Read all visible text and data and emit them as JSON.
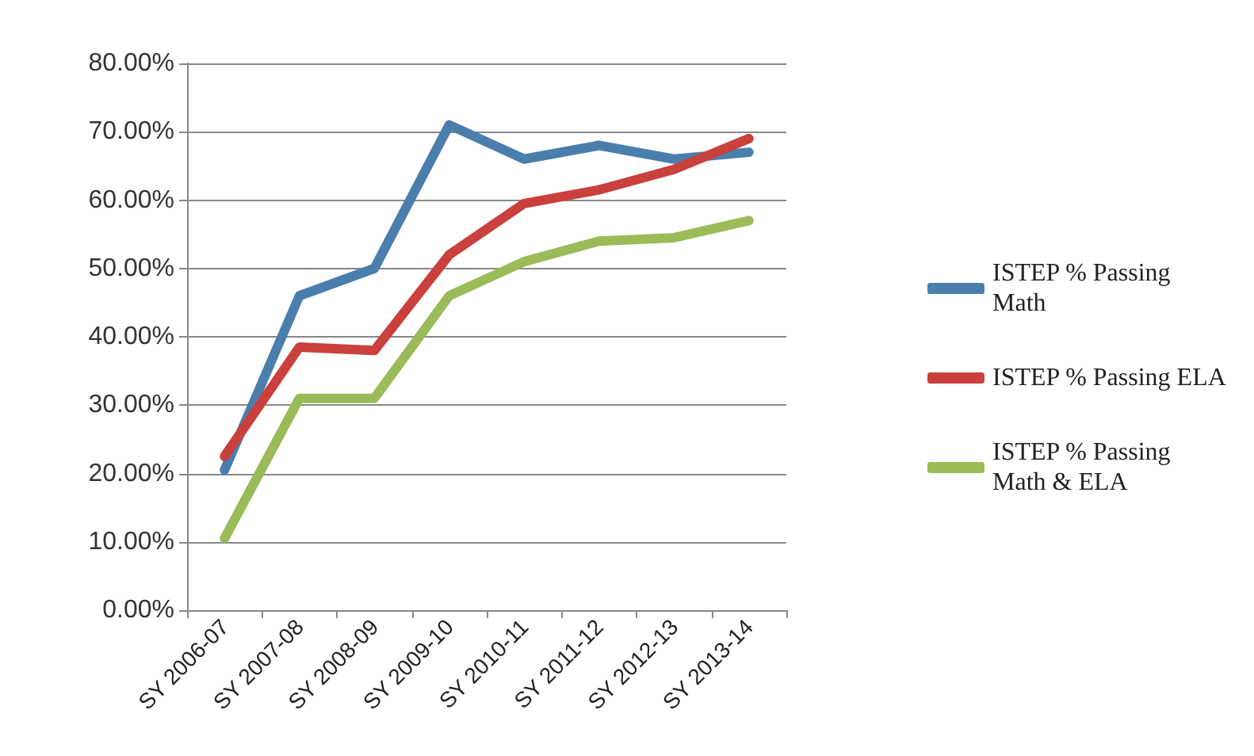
{
  "chart_data": {
    "type": "line",
    "categories": [
      "SY 2006-07",
      "SY 2007-08",
      "SY 2008-09",
      "SY 2009-10",
      "SY 2010-11",
      "SY 2011-12",
      "SY 2012-13",
      "SY 2013-14"
    ],
    "series": [
      {
        "name": "ISTEP % Passing Math",
        "color": "#4a7ead",
        "values": [
          20.5,
          46,
          50,
          71,
          66,
          68,
          66,
          67
        ]
      },
      {
        "name": "ISTEP % Passing ELA",
        "color": "#c9403c",
        "values": [
          22.5,
          38.5,
          38,
          52,
          59.5,
          61.5,
          64.5,
          69
        ]
      },
      {
        "name": "ISTEP % Passing Math & ELA",
        "color": "#9bbb59",
        "values": [
          10.5,
          31,
          31,
          46,
          51,
          54,
          54.5,
          57
        ]
      }
    ],
    "ylim": [
      0,
      80
    ],
    "yticks": [
      {
        "value": 0,
        "label": "0.00%"
      },
      {
        "value": 10,
        "label": "10.00%"
      },
      {
        "value": 20,
        "label": "20.00%"
      },
      {
        "value": 30,
        "label": "30.00%"
      },
      {
        "value": 40,
        "label": "40.00%"
      },
      {
        "value": 50,
        "label": "50.00%"
      },
      {
        "value": 60,
        "label": "60.00%"
      },
      {
        "value": 70,
        "label": "70.00%"
      },
      {
        "value": 80,
        "label": "80.00%"
      }
    ],
    "grid": "y",
    "legend": "right",
    "marker": "none",
    "line_style": "solid"
  }
}
